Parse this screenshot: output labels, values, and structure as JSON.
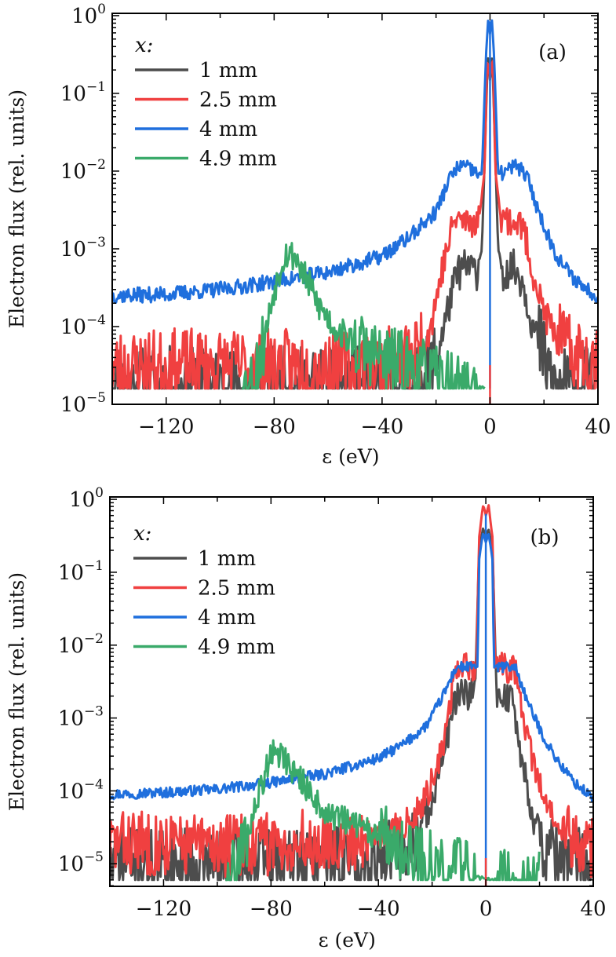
{
  "figure": {
    "panels": [
      "(a)",
      "(b)"
    ]
  },
  "chart_data": [
    {
      "type": "line",
      "panel_label": "(a)",
      "title": "",
      "xlabel": "ε (eV)",
      "ylabel": "Electron flux (rel. units)",
      "xlim": [
        -140,
        40
      ],
      "ylim": [
        1e-05,
        1.07
      ],
      "yscale": "log",
      "x_ticks": [
        -120,
        -80,
        -40,
        0,
        40
      ],
      "x_tick_labels": [
        "−120",
        "−80",
        "−40",
        "0",
        "40"
      ],
      "y_ticks": [
        1,
        0.1,
        0.01,
        0.001,
        0.0001,
        1e-05
      ],
      "y_tick_labels": [
        {
          "base": "10",
          "exp": "0"
        },
        {
          "base": "10",
          "exp": "−1"
        },
        {
          "base": "10",
          "exp": "−2"
        },
        {
          "base": "10",
          "exp": "−3"
        },
        {
          "base": "10",
          "exp": "−4"
        },
        {
          "base": "10",
          "exp": "−5"
        }
      ],
      "grid": false,
      "legend": {
        "title": "x:",
        "placement": "top-left",
        "entries": [
          "1 mm",
          "2.5 mm",
          "4 mm",
          "4.9 mm"
        ]
      },
      "series": [
        {
          "name": "1 mm",
          "color": "#4d4d4d",
          "floor": 1.6e-05,
          "noise": 0.55,
          "seed": 11,
          "range": [
            -140,
            40
          ],
          "points": [
            [
              -140,
              1.6e-05
            ],
            [
              -60,
              1.6e-05
            ],
            [
              -25,
              1.6e-05
            ],
            [
              -20,
              4e-05
            ],
            [
              -15,
              0.0002
            ],
            [
              -12,
              0.0005
            ],
            [
              -8,
              0.0006
            ],
            [
              -5,
              0.0005
            ],
            [
              -3,
              0.001
            ],
            [
              -1.5,
              0.05
            ],
            [
              -0.8,
              0.3
            ],
            [
              0,
              0.15
            ],
            [
              0.8,
              0.3
            ],
            [
              1.5,
              0.05
            ],
            [
              3,
              0.001
            ],
            [
              5,
              0.0005
            ],
            [
              8,
              0.0006
            ],
            [
              12,
              0.0004
            ],
            [
              16,
              0.0001
            ],
            [
              20,
              4e-05
            ],
            [
              24,
              1.6e-05
            ],
            [
              40,
              1.6e-05
            ]
          ]
        },
        {
          "name": "2.5 mm",
          "color": "#f04040",
          "floor": 1.6e-05,
          "noise": 0.5,
          "seed": 23,
          "range": [
            -140,
            40
          ],
          "points": [
            [
              -140,
              3e-05
            ],
            [
              -100,
              3e-05
            ],
            [
              -60,
              3e-05
            ],
            [
              -40,
              3e-05
            ],
            [
              -28,
              4e-05
            ],
            [
              -22,
              0.0001
            ],
            [
              -18,
              0.0005
            ],
            [
              -13,
              0.0025
            ],
            [
              -8,
              0.0022
            ],
            [
              -4,
              0.0025
            ],
            [
              -2,
              0.01
            ],
            [
              -1,
              0.3
            ],
            [
              0,
              0.15
            ],
            [
              1,
              0.3
            ],
            [
              2,
              0.01
            ],
            [
              4,
              0.0025
            ],
            [
              8,
              0.0023
            ],
            [
              12,
              0.002
            ],
            [
              16,
              0.0005
            ],
            [
              20,
              0.00015
            ],
            [
              26,
              6e-05
            ],
            [
              32,
              4e-05
            ],
            [
              40,
              4e-05
            ]
          ]
        },
        {
          "name": "4 mm",
          "color": "#1f6fdd",
          "floor": 1.6e-05,
          "noise": 0.22,
          "seed": 37,
          "range": [
            -140,
            40
          ],
          "points": [
            [
              -140,
              0.00025
            ],
            [
              -120,
              0.00026
            ],
            [
              -100,
              0.0003
            ],
            [
              -80,
              0.00038
            ],
            [
              -60,
              0.0005
            ],
            [
              -40,
              0.0008
            ],
            [
              -30,
              0.0014
            ],
            [
              -20,
              0.003
            ],
            [
              -15,
              0.008
            ],
            [
              -11,
              0.012
            ],
            [
              -6,
              0.01
            ],
            [
              -3,
              0.009
            ],
            [
              -1.5,
              0.3
            ],
            [
              -0.6,
              1.0
            ],
            [
              0,
              0.6
            ],
            [
              0.6,
              1.0
            ],
            [
              1.5,
              0.3
            ],
            [
              3,
              0.009
            ],
            [
              6,
              0.01
            ],
            [
              10,
              0.012
            ],
            [
              14,
              0.008
            ],
            [
              18,
              0.003
            ],
            [
              24,
              0.0009
            ],
            [
              30,
              0.00045
            ],
            [
              36,
              0.0003
            ],
            [
              40,
              0.00025
            ]
          ]
        },
        {
          "name": "4.9 mm",
          "color": "#3aaa6a",
          "floor": 1.6e-05,
          "noise": 0.45,
          "seed": 53,
          "range": [
            -92,
            -2
          ],
          "points": [
            [
              -92,
              1.6e-05
            ],
            [
              -88,
              2e-05
            ],
            [
              -84,
              6e-05
            ],
            [
              -80,
              0.0003
            ],
            [
              -76,
              0.0009
            ],
            [
              -72,
              0.0008
            ],
            [
              -68,
              0.0004
            ],
            [
              -64,
              0.0002
            ],
            [
              -58,
              0.0001
            ],
            [
              -50,
              6e-05
            ],
            [
              -40,
              4e-05
            ],
            [
              -30,
              3e-05
            ],
            [
              -20,
              2e-05
            ],
            [
              -10,
              1.6e-05
            ],
            [
              -2,
              1.6e-05
            ]
          ]
        }
      ]
    },
    {
      "type": "line",
      "panel_label": "(b)",
      "title": "",
      "xlabel": "ε (eV)",
      "ylabel": "Electron flux (rel. units)",
      "xlim": [
        -140,
        40
      ],
      "ylim": [
        4.9e-06,
        1.08
      ],
      "yscale": "log",
      "x_ticks": [
        -120,
        -80,
        -40,
        0,
        40
      ],
      "x_tick_labels": [
        "−120",
        "−80",
        "−40",
        "0",
        "40"
      ],
      "y_ticks": [
        1,
        0.1,
        0.01,
        0.001,
        0.0001,
        1e-05
      ],
      "y_tick_labels": [
        {
          "base": "10",
          "exp": "0"
        },
        {
          "base": "10",
          "exp": "−1"
        },
        {
          "base": "10",
          "exp": "−2"
        },
        {
          "base": "10",
          "exp": "−3"
        },
        {
          "base": "10",
          "exp": "−4"
        },
        {
          "base": "10",
          "exp": "−5"
        }
      ],
      "grid": false,
      "legend": {
        "title": "x:",
        "placement": "top-left",
        "entries": [
          "1 mm",
          "2.5 mm",
          "4 mm",
          "4.9 mm"
        ]
      },
      "series": [
        {
          "name": "1 mm",
          "color": "#4d4d4d",
          "floor": 6e-06,
          "noise": 0.5,
          "seed": 71,
          "range": [
            -140,
            40
          ],
          "points": [
            [
              -140,
              1e-05
            ],
            [
              -100,
              1e-05
            ],
            [
              -60,
              1.1e-05
            ],
            [
              -40,
              1.2e-05
            ],
            [
              -30,
              1.5e-05
            ],
            [
              -25,
              2.5e-05
            ],
            [
              -20,
              8e-05
            ],
            [
              -15,
              0.0004
            ],
            [
              -11,
              0.002
            ],
            [
              -6,
              0.002
            ],
            [
              -4,
              0.0022
            ],
            [
              -2.5,
              0.2
            ],
            [
              -1,
              0.4
            ],
            [
              0,
              0.3
            ],
            [
              1,
              0.4
            ],
            [
              2.5,
              0.2
            ],
            [
              4,
              0.0022
            ],
            [
              7,
              0.002
            ],
            [
              10,
              0.0018
            ],
            [
              14,
              0.0002
            ],
            [
              18,
              4e-05
            ],
            [
              22,
              1.5e-05
            ],
            [
              28,
              1e-05
            ],
            [
              40,
              1e-05
            ]
          ]
        },
        {
          "name": "2.5 mm",
          "color": "#f04040",
          "floor": 6e-06,
          "noise": 0.45,
          "seed": 83,
          "range": [
            -140,
            40
          ],
          "points": [
            [
              -140,
              2e-05
            ],
            [
              -100,
              1.8e-05
            ],
            [
              -60,
              2e-05
            ],
            [
              -40,
              2.5e-05
            ],
            [
              -30,
              3.5e-05
            ],
            [
              -24,
              6e-05
            ],
            [
              -18,
              0.0002
            ],
            [
              -14,
              0.001
            ],
            [
              -11,
              0.005
            ],
            [
              -6,
              0.0048
            ],
            [
              -3.5,
              0.005
            ],
            [
              -2.5,
              0.3
            ],
            [
              -1,
              0.85
            ],
            [
              0,
              0.6
            ],
            [
              1,
              0.85
            ],
            [
              2.5,
              0.3
            ],
            [
              3.5,
              0.005
            ],
            [
              7,
              0.005
            ],
            [
              11,
              0.0045
            ],
            [
              14,
              0.001
            ],
            [
              18,
              0.0002
            ],
            [
              24,
              5e-05
            ],
            [
              32,
              2e-05
            ],
            [
              40,
              1.8e-05
            ]
          ]
        },
        {
          "name": "4 mm",
          "color": "#1f6fdd",
          "floor": 6e-06,
          "noise": 0.16,
          "seed": 97,
          "range": [
            -140,
            40
          ],
          "points": [
            [
              -140,
              9e-05
            ],
            [
              -120,
              9.5e-05
            ],
            [
              -100,
              0.000105
            ],
            [
              -80,
              0.00013
            ],
            [
              -60,
              0.00017
            ],
            [
              -40,
              0.00028
            ],
            [
              -30,
              0.00045
            ],
            [
              -22,
              0.0008
            ],
            [
              -16,
              0.002
            ],
            [
              -11,
              0.005
            ],
            [
              -6,
              0.005
            ],
            [
              -3,
              0.005
            ],
            [
              -2.5,
              0.15
            ],
            [
              -1,
              0.35
            ],
            [
              0,
              0.25
            ],
            [
              1,
              0.35
            ],
            [
              2.5,
              0.15
            ],
            [
              3,
              0.005
            ],
            [
              7,
              0.005
            ],
            [
              11,
              0.005
            ],
            [
              16,
              0.0015
            ],
            [
              22,
              0.0005
            ],
            [
              28,
              0.00022
            ],
            [
              34,
              0.00012
            ],
            [
              40,
              8e-05
            ]
          ]
        },
        {
          "name": "4.9 mm",
          "color": "#3aaa6a",
          "floor": 6e-06,
          "noise": 0.45,
          "seed": 109,
          "range": [
            -97,
            20
          ],
          "points": [
            [
              -97,
              6e-06
            ],
            [
              -92,
              1e-05
            ],
            [
              -88,
              3e-05
            ],
            [
              -84,
              0.0001
            ],
            [
              -80,
              0.00035
            ],
            [
              -76,
              0.00033
            ],
            [
              -72,
              0.0002
            ],
            [
              -66,
              0.0001
            ],
            [
              -60,
              5e-05
            ],
            [
              -50,
              3.5e-05
            ],
            [
              -40,
              2.5e-05
            ],
            [
              -30,
              1.5e-05
            ],
            [
              -20,
              1e-05
            ],
            [
              -10,
              8e-06
            ],
            [
              0,
              6e-06
            ],
            [
              20,
              6e-06
            ]
          ]
        }
      ]
    }
  ]
}
